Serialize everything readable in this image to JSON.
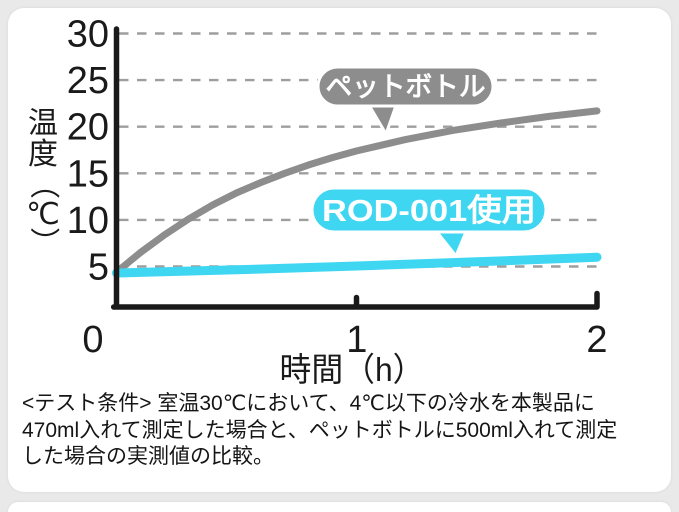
{
  "page": {
    "background_color": "#e9e9e9",
    "card_color": "#ffffff"
  },
  "chart_data": {
    "type": "line",
    "title": "",
    "xlabel": "時間（h）",
    "ylabel": "温度（℃）",
    "xlim": [
      0,
      2
    ],
    "ylim": [
      0,
      30
    ],
    "xticks": [
      0,
      1,
      2
    ],
    "yticks": [
      5,
      10,
      15,
      20,
      25,
      30
    ],
    "grid": "horizontal-dashed",
    "legend_position": "speech-bubble-annotations-on-lines",
    "axis_color": "#1a1a1a",
    "grid_color": "#9e9e9e",
    "series": [
      {
        "name": "ペットボトル",
        "color": "#8d8d8d",
        "x": [
          0,
          0.1,
          0.2,
          0.3,
          0.4,
          0.5,
          0.6,
          0.7,
          0.8,
          0.9,
          1.0,
          1.1,
          1.2,
          1.4,
          1.6,
          1.8,
          2.0
        ],
        "y": [
          4.4,
          6.5,
          8.4,
          10.1,
          11.6,
          12.9,
          14.0,
          15.0,
          15.9,
          16.7,
          17.4,
          18.0,
          18.6,
          19.6,
          20.4,
          21.1,
          21.7
        ]
      },
      {
        "name": "ROD-001使用",
        "color": "#3fd6f2",
        "x": [
          0,
          0.5,
          1.0,
          1.5,
          2.0
        ],
        "y": [
          4.3,
          4.65,
          5.05,
          5.5,
          6.0
        ]
      }
    ]
  },
  "footer": {
    "lines": [
      "<テスト条件> 室温30℃において、4℃以下の冷水を本製品に",
      "470ml入れて測定した場合と、ペットボトルに500ml入れて測定",
      "した場合の実測値の比較。"
    ]
  }
}
